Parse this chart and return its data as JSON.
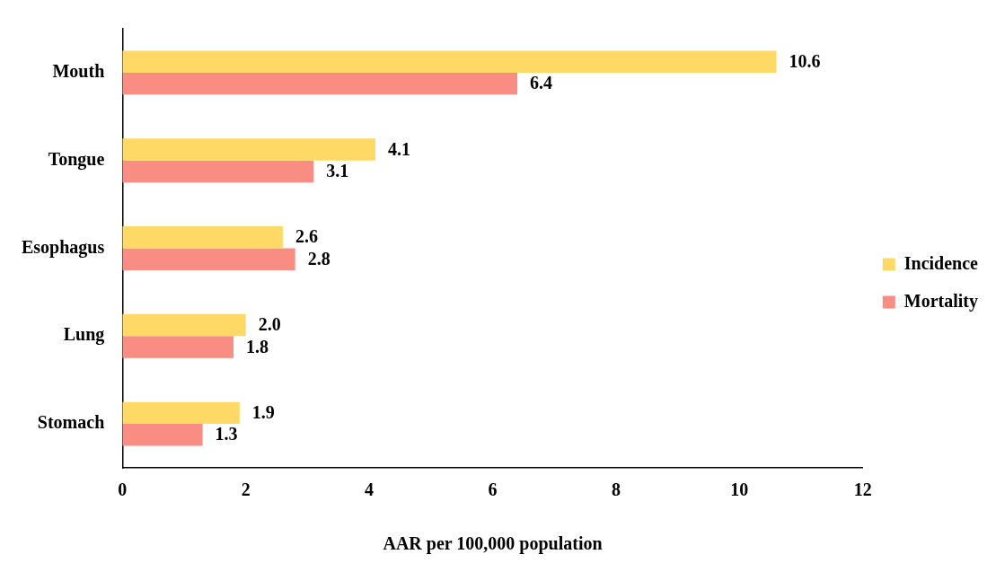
{
  "chart_data": {
    "type": "bar",
    "orientation": "horizontal",
    "xlabel": "AAR per 100,000 population",
    "categories": [
      "Mouth",
      "Tongue",
      "Esophagus",
      "Lung",
      "Stomach"
    ],
    "series": [
      {
        "name": "Incidence",
        "color": "#ffd966",
        "values": [
          10.6,
          4.1,
          2.6,
          2.0,
          1.9
        ],
        "value_labels": [
          "10.6",
          "4.1",
          "2.6",
          "2.0",
          "1.9"
        ]
      },
      {
        "name": "Mortality",
        "color": "#f98c83",
        "values": [
          6.4,
          3.1,
          2.8,
          1.8,
          1.3
        ],
        "value_labels": [
          "6.4",
          "3.1",
          "2.8",
          "1.8",
          "1.3"
        ]
      }
    ],
    "xlim": [
      0,
      12
    ],
    "xticks": [
      0,
      2,
      4,
      6,
      8,
      10,
      12
    ],
    "grid": false,
    "legend": "right"
  }
}
